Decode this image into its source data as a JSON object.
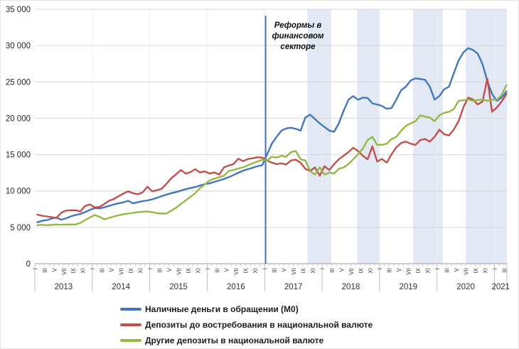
{
  "chart_data": {
    "type": "line",
    "title": "",
    "start_month": "2013-01",
    "end_month": "2021-03",
    "y_axis": {
      "min": 0,
      "max": 35000,
      "step": 5000,
      "tick_labels": [
        "0",
        "5 000",
        "10 000",
        "15 000",
        "20 000",
        "25 000",
        "30 000",
        "35 000"
      ]
    },
    "x_axis": {
      "years": [
        "2013",
        "2014",
        "2015",
        "2016",
        "2017",
        "2018",
        "2019",
        "2020",
        "2021"
      ],
      "month_tick_labels": [
        "I",
        "III",
        "V",
        "VII",
        "IX",
        "XI"
      ],
      "last_year_visible_month_labels": [
        "I",
        "III"
      ],
      "months_total": 99
    },
    "grid": "horizontal-light",
    "legend_position": "bottom",
    "annotation": {
      "lines": [
        "Реформы в",
        "финансовом",
        "секторе"
      ],
      "line_color": "#4472C4",
      "line_month_index": 47.7
    },
    "highlight_bands": [
      {
        "from_month_index": 56.9,
        "to_month_index": 61.9,
        "approx_period": "X 2017 – II 2018"
      },
      {
        "from_month_index": 67.3,
        "to_month_index": 72.0,
        "approx_period": "VIII 2018 – XII 2018"
      },
      {
        "from_month_index": 79.0,
        "to_month_index": 85.2,
        "approx_period": "VIII 2019 – II 2020"
      },
      {
        "from_month_index": 90.0,
        "to_month_index": 98.6,
        "approx_period": "VII 2020 – III 2021"
      }
    ],
    "band_color": "#E2E9F4",
    "series": [
      {
        "name": "Наличные деньги в обращении (М0)",
        "color": "#4376BD",
        "values": [
          5700,
          5900,
          6000,
          6200,
          6350,
          6050,
          6250,
          6500,
          6700,
          6850,
          7100,
          7400,
          7650,
          7600,
          7750,
          7950,
          8150,
          8300,
          8450,
          8650,
          8300,
          8450,
          8600,
          8700,
          8850,
          9050,
          9300,
          9500,
          9700,
          9850,
          10050,
          10250,
          10400,
          10550,
          10750,
          10950,
          11050,
          11250,
          11450,
          11650,
          11900,
          12200,
          12500,
          12800,
          13000,
          13200,
          13400,
          13550,
          15000,
          16500,
          17450,
          18300,
          18600,
          18700,
          18550,
          18300,
          20100,
          20500,
          19900,
          19300,
          18800,
          18300,
          18150,
          19300,
          21050,
          22550,
          23050,
          22550,
          22850,
          22800,
          22050,
          21900,
          21700,
          21300,
          21400,
          22550,
          23850,
          24350,
          25200,
          25500,
          25400,
          25300,
          24350,
          22550,
          23050,
          24000,
          24350,
          26150,
          27950,
          29050,
          29650,
          29400,
          28900,
          27450,
          25150,
          23350,
          22400,
          22850,
          23700
        ]
      },
      {
        "name": "Депозиты до востребования в национальной валюте",
        "color": "#C0504D",
        "values": [
          6750,
          6600,
          6500,
          6400,
          6300,
          7000,
          7300,
          7350,
          7350,
          7200,
          7950,
          8150,
          7750,
          7800,
          8200,
          8650,
          8900,
          9300,
          9650,
          9950,
          9700,
          9550,
          9800,
          10600,
          9950,
          10100,
          10300,
          11000,
          11750,
          12300,
          12900,
          12400,
          12600,
          13000,
          12550,
          12700,
          12400,
          12550,
          12250,
          13250,
          13500,
          13700,
          14450,
          14100,
          14400,
          14500,
          14650,
          14600,
          14200,
          13900,
          13700,
          13800,
          13650,
          14200,
          14300,
          13900,
          13050,
          12750,
          13250,
          12100,
          13400,
          12900,
          13700,
          14350,
          14850,
          15350,
          15950,
          15500,
          14850,
          14350,
          16150,
          14050,
          14400,
          13900,
          15050,
          16000,
          16600,
          16800,
          16500,
          16350,
          17000,
          17150,
          16800,
          17450,
          18450,
          17800,
          17650,
          18450,
          19600,
          21500,
          22850,
          22600,
          21900,
          22300,
          25450,
          20900,
          21500,
          22300,
          23350
        ]
      },
      {
        "name": "Другие депозиты в национальной валюте",
        "color": "#93B844",
        "values": [
          5300,
          5350,
          5300,
          5350,
          5400,
          5350,
          5400,
          5400,
          5400,
          5600,
          6000,
          6350,
          6700,
          6450,
          6100,
          6300,
          6500,
          6650,
          6800,
          6900,
          7000,
          7100,
          7150,
          7200,
          7100,
          6950,
          6900,
          6900,
          7300,
          7700,
          8200,
          8700,
          9200,
          9700,
          10400,
          10900,
          11450,
          11700,
          11900,
          12100,
          12750,
          12900,
          13100,
          13250,
          13550,
          13800,
          14050,
          14300,
          14200,
          14700,
          14600,
          14850,
          14700,
          15350,
          15500,
          14350,
          14200,
          12750,
          12250,
          13250,
          12250,
          12550,
          12400,
          13050,
          13250,
          13700,
          14350,
          15050,
          15850,
          17000,
          17450,
          16350,
          16350,
          16500,
          17150,
          17450,
          18300,
          18950,
          19300,
          19600,
          20400,
          20250,
          20100,
          19600,
          20400,
          20750,
          20900,
          21250,
          22400,
          22500,
          22600,
          22400,
          22500,
          22600,
          22400,
          22550,
          22550,
          23200,
          24550
        ]
      }
    ]
  }
}
